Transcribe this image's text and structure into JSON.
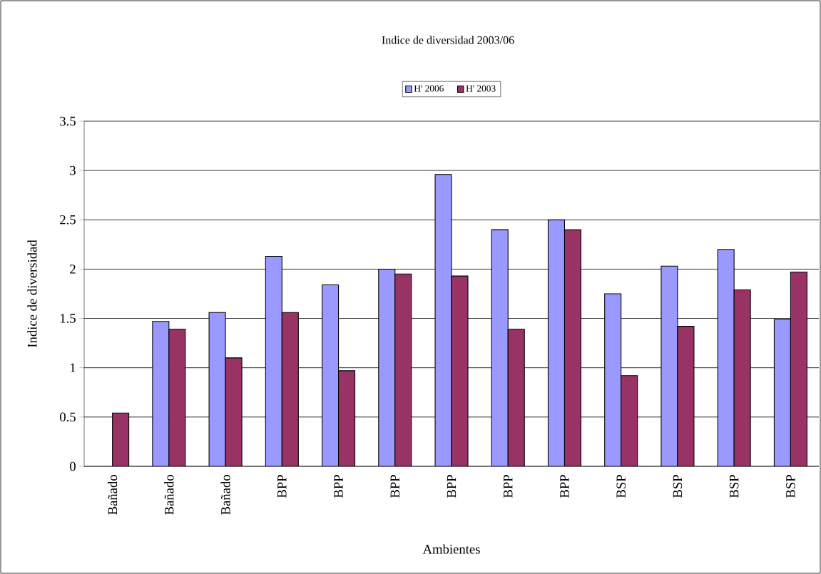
{
  "chart_data": {
    "type": "bar",
    "title": "Indice de diversidad 2003/06",
    "xlabel": "Ambientes",
    "ylabel": "Indice de diversidad",
    "categories": [
      "Bañado",
      "Bañado",
      "Bañado",
      "BPP",
      "BPP",
      "BPP",
      "BPP",
      "BPP",
      "BPP",
      "BSP",
      "BSP",
      "BSP",
      "BSP"
    ],
    "series": [
      {
        "name": "H' 2006",
        "color": "#9999ff",
        "values": [
          null,
          1.47,
          1.56,
          2.13,
          1.84,
          2.0,
          2.96,
          2.4,
          2.5,
          1.75,
          2.03,
          2.2,
          1.49
        ]
      },
      {
        "name": "H'  2003",
        "color": "#993366",
        "values": [
          0.54,
          1.39,
          1.1,
          1.56,
          0.97,
          1.95,
          1.93,
          1.39,
          2.4,
          0.92,
          1.42,
          1.79,
          1.97
        ]
      }
    ],
    "ylim": [
      0,
      3.5
    ],
    "yticks": [
      0,
      0.5,
      1,
      1.5,
      2,
      2.5,
      3,
      3.5
    ],
    "grid": "y",
    "legend": "top"
  }
}
